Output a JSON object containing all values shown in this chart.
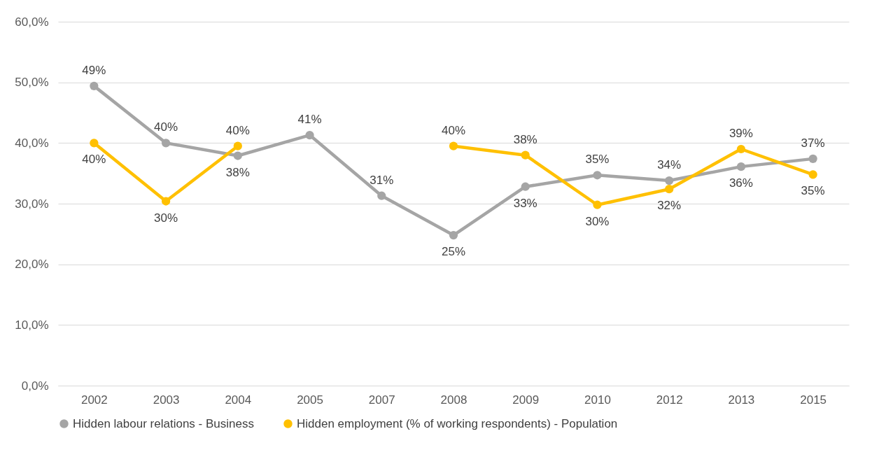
{
  "chart_data": {
    "type": "line",
    "categories": [
      "2002",
      "2003",
      "2004",
      "2005",
      "2007",
      "2008",
      "2009",
      "2010",
      "2012",
      "2013",
      "2015"
    ],
    "series": [
      {
        "name": "Hidden labour relations - Business",
        "color": "#a5a5a5",
        "values": [
          49.4,
          40,
          37.9,
          41.3,
          31.3,
          24.8,
          32.8,
          34.7,
          33.8,
          36.1,
          37.4
        ],
        "value_labels": [
          "49%",
          "40%",
          "38%",
          "41%",
          "31%",
          "25%",
          "33%",
          "35%",
          "34%",
          "36%",
          "37%"
        ]
      },
      {
        "name": "Hidden employment (% of working respondents) - Population",
        "color": "#ffc000",
        "values": [
          40,
          30.4,
          39.5,
          null,
          null,
          39.5,
          38,
          29.8,
          32.4,
          39,
          34.8
        ],
        "value_labels": [
          "40%",
          "30%",
          "40%",
          null,
          null,
          "40%",
          "38%",
          "30%",
          "32%",
          "39%",
          "35%"
        ]
      }
    ],
    "ylim": [
      0,
      60
    ],
    "yticks": [
      {
        "value": 0,
        "label": "0,0%"
      },
      {
        "value": 10,
        "label": "10,0%"
      },
      {
        "value": 20,
        "label": "20,0%"
      },
      {
        "value": 30,
        "label": "30,0%"
      },
      {
        "value": 40,
        "label": "40,0%"
      },
      {
        "value": 50,
        "label": "50,0%"
      },
      {
        "value": 60,
        "label": "60,0%"
      }
    ],
    "grid": "y",
    "legend": "bottom",
    "marker": "circle",
    "line_style": "solid"
  }
}
